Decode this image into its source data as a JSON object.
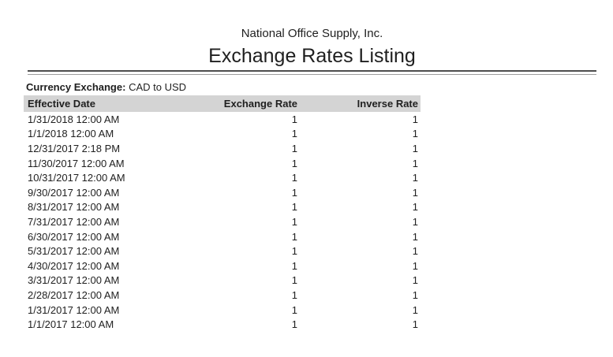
{
  "report": {
    "company": "National Office Supply, Inc.",
    "title": "Exchange Rates Listing",
    "filter_label": "Currency Exchange:",
    "filter_value": "CAD to USD"
  },
  "table": {
    "columns": [
      "Effective Date",
      "Exchange Rate",
      "Inverse Rate"
    ],
    "rows": [
      [
        "1/31/2018 12:00 AM",
        "1",
        "1"
      ],
      [
        "1/1/2018 12:00 AM",
        "1",
        "1"
      ],
      [
        "12/31/2017 2:18 PM",
        "1",
        "1"
      ],
      [
        "11/30/2017 12:00 AM",
        "1",
        "1"
      ],
      [
        "10/31/2017 12:00 AM",
        "1",
        "1"
      ],
      [
        "9/30/2017 12:00 AM",
        "1",
        "1"
      ],
      [
        "8/31/2017 12:00 AM",
        "1",
        "1"
      ],
      [
        "7/31/2017 12:00 AM",
        "1",
        "1"
      ],
      [
        "6/30/2017 12:00 AM",
        "1",
        "1"
      ],
      [
        "5/31/2017 12:00 AM",
        "1",
        "1"
      ],
      [
        "4/30/2017 12:00 AM",
        "1",
        "1"
      ],
      [
        "3/31/2017 12:00 AM",
        "1",
        "1"
      ],
      [
        "2/28/2017 12:00 AM",
        "1",
        "1"
      ],
      [
        "1/31/2017 12:00 AM",
        "1",
        "1"
      ],
      [
        "1/1/2017 12:00 AM",
        "1",
        "1"
      ]
    ]
  },
  "colors": {
    "header_bg": "#d4d4d4",
    "rule_dark": "#4d4d4d",
    "rule_light": "#9e9e9e",
    "text": "#1f1f1f"
  }
}
